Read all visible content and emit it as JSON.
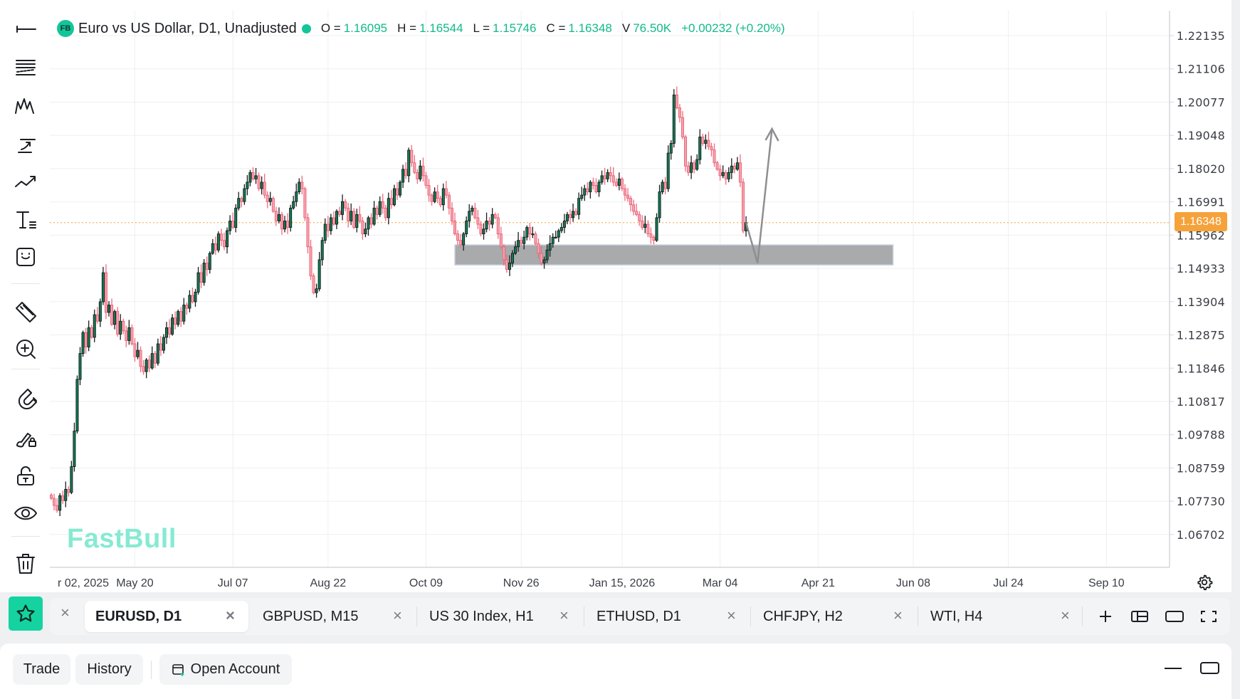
{
  "legend": {
    "badge": "FB",
    "title": "Euro vs US Dollar, D1, Unadjusted",
    "o_label": "O =",
    "o": "1.16095",
    "h_label": "H =",
    "h": "1.16544",
    "l_label": "L =",
    "l": "1.15746",
    "c_label": "C =",
    "c": "1.16348",
    "v_label": "V",
    "v": "76.50K",
    "change": "+0.00232 (+0.20%)"
  },
  "watermark": "FastBull",
  "current_price": "1.16348",
  "colors": {
    "accent": "#14d3a0",
    "up": "#0f7a55",
    "down": "#f06a7e",
    "price_tag": "#f6a23b",
    "zone": "#a9aaac"
  },
  "toolbar": [
    "horizontal-line-icon",
    "fib-retracement-icon",
    "pattern-icon",
    "trend-arrow-icon",
    "trendline-icon",
    "text-tool-icon",
    "emoji-icon",
    "ruler-icon",
    "zoom-in-icon",
    "magnet-icon",
    "lock-drawings-icon",
    "unlock-icon",
    "eye-icon",
    "trash-icon"
  ],
  "chart_data": {
    "type": "candlestick",
    "symbol": "EURUSD",
    "timeframe": "D1",
    "y_ticks": [
      "1.22135",
      "1.21106",
      "1.20077",
      "1.19048",
      "1.18020",
      "1.16991",
      "1.15962",
      "1.14933",
      "1.13904",
      "1.12875",
      "1.11846",
      "1.10817",
      "1.09788",
      "1.08759",
      "1.07730",
      "1.06702"
    ],
    "x_ticks": [
      "r 02, 2025",
      "May 20",
      "Jul 07",
      "Aug 22",
      "Oct 09",
      "Nov 26",
      "Jan 15, 2026",
      "Mar 04",
      "Apr 21",
      "Jun 08",
      "Jul 24",
      "Sep 10"
    ],
    "x_tick_bar_index": [
      -6,
      29,
      63,
      96,
      130,
      163,
      198,
      232,
      266,
      299,
      332,
      366
    ],
    "last_open": 1.16095,
    "closes": [
      1.0782,
      1.076,
      1.0745,
      1.079,
      1.0775,
      1.081,
      1.08,
      1.088,
      1.099,
      1.115,
      1.123,
      1.1295,
      1.125,
      1.131,
      1.128,
      1.135,
      1.133,
      1.139,
      1.148,
      1.1357,
      1.138,
      1.132,
      1.136,
      1.129,
      1.133,
      1.13,
      1.127,
      1.131,
      1.126,
      1.122,
      1.124,
      1.119,
      1.1174,
      1.121,
      1.1185,
      1.123,
      1.12,
      1.126,
      1.124,
      1.128,
      1.131,
      1.129,
      1.134,
      1.132,
      1.136,
      1.133,
      1.138,
      1.137,
      1.141,
      1.139,
      1.142,
      1.148,
      1.145,
      1.151,
      1.149,
      1.154,
      1.157,
      1.155,
      1.16,
      1.158,
      1.156,
      1.161,
      1.164,
      1.162,
      1.168,
      1.171,
      1.17,
      1.174,
      1.176,
      1.179,
      1.177,
      1.178,
      1.174,
      1.176,
      1.172,
      1.17,
      1.171,
      1.167,
      1.164,
      1.166,
      1.1615,
      1.164,
      1.162,
      1.168,
      1.17,
      1.173,
      1.176,
      1.174,
      1.165,
      1.156,
      1.147,
      1.1418,
      1.143,
      1.152,
      1.158,
      1.163,
      1.161,
      1.165,
      1.163,
      1.167,
      1.166,
      1.17,
      1.168,
      1.164,
      1.167,
      1.162,
      1.166,
      1.164,
      1.16,
      1.1615,
      1.165,
      1.163,
      1.168,
      1.166,
      1.17,
      1.168,
      1.165,
      1.171,
      1.169,
      1.174,
      1.172,
      1.176,
      1.18,
      1.178,
      1.1859,
      1.182,
      1.179,
      1.177,
      1.181,
      1.178,
      1.175,
      1.172,
      1.17,
      1.173,
      1.171,
      1.169,
      1.174,
      1.172,
      1.168,
      1.164,
      1.16,
      1.158,
      1.1566,
      1.16,
      1.164,
      1.167,
      1.168,
      1.165,
      1.163,
      1.16,
      1.1615,
      1.164,
      1.163,
      1.166,
      1.165,
      1.16,
      1.156,
      1.152,
      1.149,
      1.151,
      1.154,
      1.156,
      1.158,
      1.157,
      1.159,
      1.162,
      1.16,
      1.16,
      1.157,
      1.154,
      1.151,
      1.152,
      1.155,
      1.157,
      1.159,
      1.159,
      1.161,
      1.162,
      1.164,
      1.166,
      1.165,
      1.167,
      1.166,
      1.171,
      1.172,
      1.174,
      1.173,
      1.176,
      1.175,
      1.173,
      1.176,
      1.178,
      1.177,
      1.179,
      1.178,
      1.176,
      1.175,
      1.177,
      1.174,
      1.172,
      1.171,
      1.169,
      1.167,
      1.166,
      1.164,
      1.162,
      1.163,
      1.16,
      1.159,
      1.158,
      1.165,
      1.173,
      1.176,
      1.174,
      1.185,
      1.188,
      1.203,
      1.199,
      1.196,
      1.19,
      1.181,
      1.179,
      1.182,
      1.18,
      1.183,
      1.19,
      1.188,
      1.189,
      1.187,
      1.186,
      1.182,
      1.18,
      1.178,
      1.179,
      1.177,
      1.179,
      1.181,
      1.18,
      1.182,
      1.176,
      1.16095,
      1.16348
    ],
    "drawings": {
      "zone": {
        "start_index": 140,
        "end_index": 292,
        "price_top": 1.1566,
        "price_bottom": 1.1504
      },
      "arrow": [
        [
          241,
          1.1635
        ],
        [
          245,
          1.151
        ],
        [
          250,
          1.1925
        ]
      ]
    },
    "ylim": [
      1.0601,
      1.2265
    ]
  },
  "tabs": [
    {
      "label": "EURUSD, D1",
      "active": true
    },
    {
      "label": "GBPUSD, M15"
    },
    {
      "label": "US 30 Index, H1"
    },
    {
      "label": "ETHUSD, D1"
    },
    {
      "label": "CHFJPY, H2"
    },
    {
      "label": "WTI, H4"
    }
  ],
  "close_glyph": "×",
  "bottom": {
    "trade": "Trade",
    "history": "History",
    "open_account": "Open Account"
  }
}
